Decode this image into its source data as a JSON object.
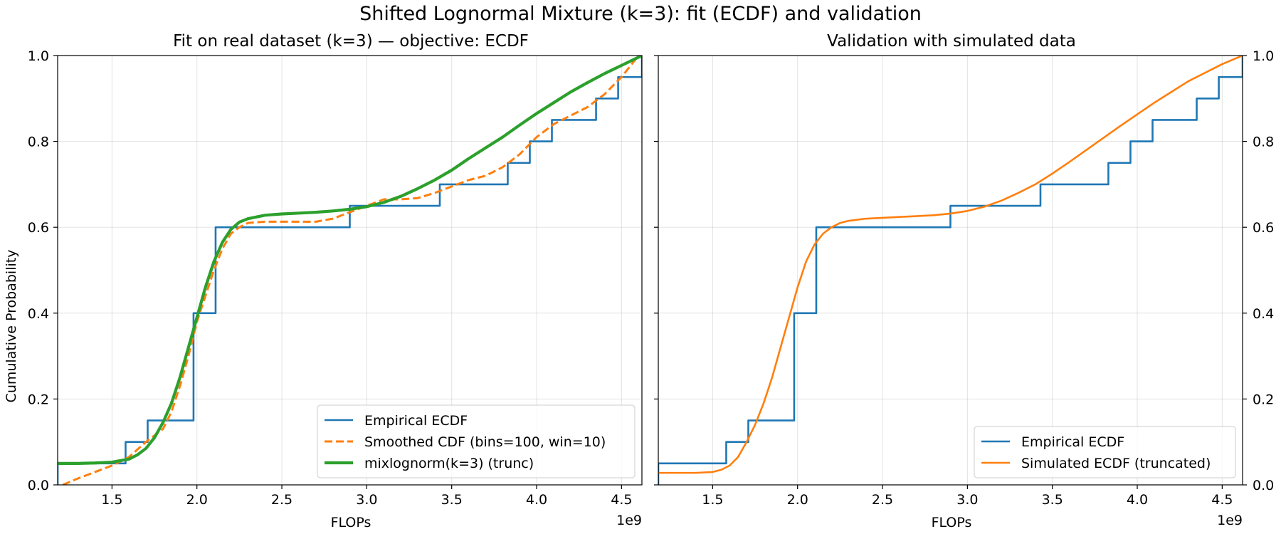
{
  "figure": {
    "suptitle": "Shifted Lognormal Mixture (k=3): fit (ECDF) and validation"
  },
  "colors": {
    "empirical": "#1f77b4",
    "orange": "#ff7f0e",
    "mixture": "#2ca02c"
  },
  "chart_data": [
    {
      "type": "line",
      "title": "Fit on real dataset (k=3) — objective: ECDF",
      "xlabel": "FLOPs",
      "ylabel": "Cumulative Probability",
      "x_offset_label": "1e9",
      "xlim": [
        1.18,
        4.62
      ],
      "ylim": [
        0,
        1
      ],
      "xticks": [
        1.5,
        2.0,
        2.5,
        3.0,
        3.5,
        4.0,
        4.5
      ],
      "xtick_labels": [
        "1.5",
        "2.0",
        "2.5",
        "3.0",
        "3.5",
        "4.0",
        "4.5"
      ],
      "yticks": [
        0,
        0.2,
        0.4,
        0.6,
        0.8,
        1.0
      ],
      "ytick_labels": [
        "0.0",
        "0.2",
        "0.4",
        "0.6",
        "0.8",
        "1.0"
      ],
      "grid": true,
      "legend_position": "lower-right",
      "series": [
        {
          "name": "Empirical ECDF",
          "style": "step",
          "color": "#1f77b4",
          "x": [
            1.18,
            1.58,
            1.71,
            1.98,
            2.11,
            2.9,
            3.43,
            3.83,
            3.96,
            4.09,
            4.35,
            4.48,
            4.62
          ],
          "y": [
            0.05,
            0.1,
            0.15,
            0.4,
            0.6,
            0.65,
            0.7,
            0.75,
            0.8,
            0.85,
            0.9,
            0.95,
            1.0
          ]
        },
        {
          "name": "Smoothed CDF (bins=100, win=10)",
          "style": "dashed",
          "color": "#ff7f0e",
          "x": [
            1.21,
            1.3,
            1.4,
            1.5,
            1.6,
            1.7,
            1.8,
            1.85,
            1.9,
            1.95,
            2.0,
            2.05,
            2.1,
            2.15,
            2.2,
            2.25,
            2.3,
            2.4,
            2.5,
            2.6,
            2.7,
            2.8,
            2.9,
            3.0,
            3.1,
            3.2,
            3.3,
            3.4,
            3.5,
            3.6,
            3.7,
            3.8,
            3.9,
            4.0,
            4.1,
            4.2,
            4.3,
            4.4,
            4.5,
            4.6
          ],
          "y": [
            0.0,
            0.015,
            0.03,
            0.045,
            0.065,
            0.1,
            0.13,
            0.17,
            0.23,
            0.3,
            0.38,
            0.44,
            0.5,
            0.55,
            0.585,
            0.6,
            0.61,
            0.613,
            0.613,
            0.613,
            0.613,
            0.62,
            0.635,
            0.65,
            0.665,
            0.665,
            0.668,
            0.68,
            0.695,
            0.71,
            0.72,
            0.74,
            0.77,
            0.81,
            0.84,
            0.86,
            0.88,
            0.91,
            0.95,
            1.0
          ]
        },
        {
          "name": "mixlognorm(k=3) (trunc)",
          "style": "solid-thick",
          "color": "#2ca02c",
          "x": [
            1.18,
            1.3,
            1.4,
            1.5,
            1.6,
            1.65,
            1.7,
            1.75,
            1.8,
            1.85,
            1.9,
            1.95,
            2.0,
            2.05,
            2.1,
            2.15,
            2.2,
            2.25,
            2.3,
            2.4,
            2.5,
            2.6,
            2.7,
            2.8,
            2.9,
            3.0,
            3.1,
            3.2,
            3.3,
            3.4,
            3.5,
            3.6,
            3.7,
            3.8,
            3.9,
            4.0,
            4.1,
            4.2,
            4.3,
            4.4,
            4.5,
            4.62
          ],
          "y": [
            0.05,
            0.05,
            0.051,
            0.053,
            0.06,
            0.07,
            0.085,
            0.11,
            0.145,
            0.19,
            0.25,
            0.32,
            0.39,
            0.46,
            0.52,
            0.565,
            0.595,
            0.612,
            0.62,
            0.628,
            0.631,
            0.633,
            0.635,
            0.638,
            0.642,
            0.648,
            0.658,
            0.672,
            0.69,
            0.71,
            0.733,
            0.76,
            0.785,
            0.81,
            0.838,
            0.865,
            0.89,
            0.915,
            0.937,
            0.958,
            0.977,
            1.0
          ]
        }
      ]
    },
    {
      "type": "line",
      "title": "Validation with simulated data",
      "xlabel": "FLOPs",
      "ylabel": "",
      "x_offset_label": "1e9",
      "xlim": [
        1.18,
        4.62
      ],
      "ylim": [
        0,
        1
      ],
      "xticks": [
        1.5,
        2.0,
        2.5,
        3.0,
        3.5,
        4.0,
        4.5
      ],
      "xtick_labels": [
        "1.5",
        "2.0",
        "2.5",
        "3.0",
        "3.5",
        "4.0",
        "4.5"
      ],
      "yticks": [
        0,
        0.2,
        0.4,
        0.6,
        0.8,
        1.0
      ],
      "ytick_labels": [
        "0.0",
        "0.2",
        "0.4",
        "0.6",
        "0.8",
        "1.0"
      ],
      "y_labels_side": "right",
      "grid": true,
      "legend_position": "lower-right",
      "series": [
        {
          "name": "Empirical ECDF",
          "style": "step",
          "color": "#1f77b4",
          "x": [
            1.18,
            1.58,
            1.71,
            1.98,
            2.11,
            2.9,
            3.43,
            3.83,
            3.96,
            4.09,
            4.35,
            4.48,
            4.62
          ],
          "y": [
            0.05,
            0.1,
            0.15,
            0.4,
            0.6,
            0.65,
            0.7,
            0.75,
            0.8,
            0.85,
            0.9,
            0.95,
            1.0
          ]
        },
        {
          "name": "Simulated ECDF (truncated)",
          "style": "solid",
          "color": "#ff7f0e",
          "x": [
            1.18,
            1.4,
            1.5,
            1.55,
            1.6,
            1.65,
            1.7,
            1.75,
            1.8,
            1.85,
            1.9,
            1.95,
            2.0,
            2.05,
            2.1,
            2.15,
            2.2,
            2.25,
            2.3,
            2.4,
            2.5,
            2.6,
            2.7,
            2.8,
            2.9,
            3.0,
            3.1,
            3.2,
            3.3,
            3.4,
            3.5,
            3.6,
            3.7,
            3.8,
            3.9,
            4.0,
            4.1,
            4.2,
            4.3,
            4.4,
            4.5,
            4.62
          ],
          "y": [
            0.028,
            0.028,
            0.03,
            0.035,
            0.045,
            0.065,
            0.1,
            0.14,
            0.19,
            0.25,
            0.32,
            0.39,
            0.46,
            0.52,
            0.56,
            0.585,
            0.6,
            0.61,
            0.615,
            0.62,
            0.622,
            0.624,
            0.626,
            0.628,
            0.632,
            0.638,
            0.648,
            0.662,
            0.68,
            0.7,
            0.725,
            0.752,
            0.78,
            0.808,
            0.836,
            0.863,
            0.89,
            0.915,
            0.94,
            0.96,
            0.98,
            1.0
          ]
        }
      ]
    }
  ]
}
